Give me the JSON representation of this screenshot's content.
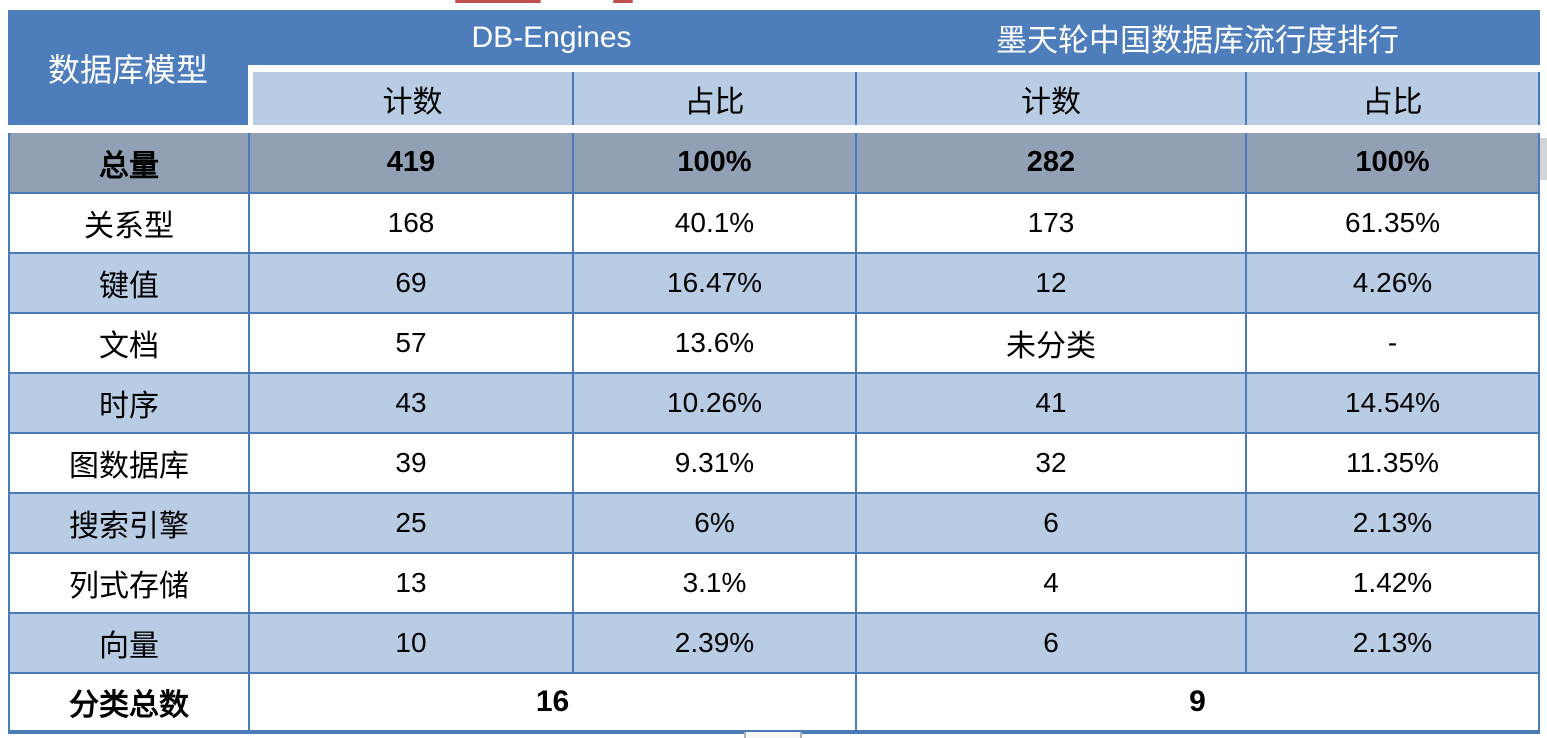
{
  "chart_data": {
    "type": "table",
    "corner_header": "数据库模型",
    "group_headers": [
      "DB-Engines",
      "墨天轮中国数据库流行度排行"
    ],
    "sub_headers": [
      "计数",
      "占比",
      "计数",
      "占比"
    ],
    "total_row": {
      "label": "总量",
      "values": [
        "419",
        "100%",
        "282",
        "100%"
      ]
    },
    "rows": [
      {
        "label": "关系型",
        "values": [
          "168",
          "40.1%",
          "173",
          "61.35%"
        ]
      },
      {
        "label": "键值",
        "values": [
          "69",
          "16.47%",
          "12",
          "4.26%"
        ]
      },
      {
        "label": "文档",
        "values": [
          "57",
          "13.6%",
          "未分类",
          "-"
        ]
      },
      {
        "label": "时序",
        "values": [
          "43",
          "10.26%",
          "41",
          "14.54%"
        ]
      },
      {
        "label": "图数据库",
        "values": [
          "39",
          "9.31%",
          "32",
          "11.35%"
        ]
      },
      {
        "label": "搜索引擎",
        "values": [
          "25",
          "6%",
          "6",
          "2.13%"
        ]
      },
      {
        "label": "列式存储",
        "values": [
          "13",
          "3.1%",
          "4",
          "1.42%"
        ]
      },
      {
        "label": "向量",
        "values": [
          "10",
          "2.39%",
          "6",
          "2.13%"
        ]
      }
    ],
    "summary_row": {
      "label": "分类总数",
      "values": [
        "16",
        "9"
      ]
    }
  },
  "colors": {
    "header_blue": "#4d7ebb",
    "light_blue": "#b8cce4",
    "total_row_gray": "#91a0b4",
    "border_blue": "#4a7bb7",
    "artifact_red": "#c0504d"
  }
}
